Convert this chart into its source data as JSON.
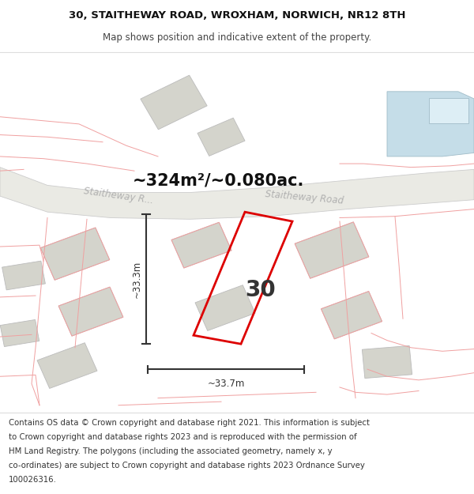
{
  "title_line1": "30, STAITHEWAY ROAD, WROXHAM, NORWICH, NR12 8TH",
  "title_line2": "Map shows position and indicative extent of the property.",
  "area_label": "~324m²/~0.080ac.",
  "number_label": "30",
  "dim_width": "~33.7m",
  "dim_height": "~33.3m",
  "footer_lines": [
    "Contains OS data © Crown copyright and database right 2021. This information is subject",
    "to Crown copyright and database rights 2023 and is reproduced with the permission of",
    "HM Land Registry. The polygons (including the associated geometry, namely x, y",
    "co-ordinates) are subject to Crown copyright and database rights 2023 Ordnance Survey",
    "100026316."
  ],
  "map_bg": "#f7f6f2",
  "plot_color": "#dd0000",
  "building_fill": "#d4d4cc",
  "building_edge": "#bbbbbb",
  "road_fill": "#eaeae4",
  "road_edge": "#cccccc",
  "water_color": "#c5dde8",
  "water_edge": "#a0bcc8",
  "faint_red": "#f0a0a0",
  "dim_color": "#333333",
  "title_fontsize": 9.5,
  "subtitle_fontsize": 8.5,
  "footer_fontsize": 7.3,
  "area_fontsize": 15,
  "number_fontsize": 20,
  "road_label_fontsize": 8.5,
  "dim_label_fontsize": 8.5
}
